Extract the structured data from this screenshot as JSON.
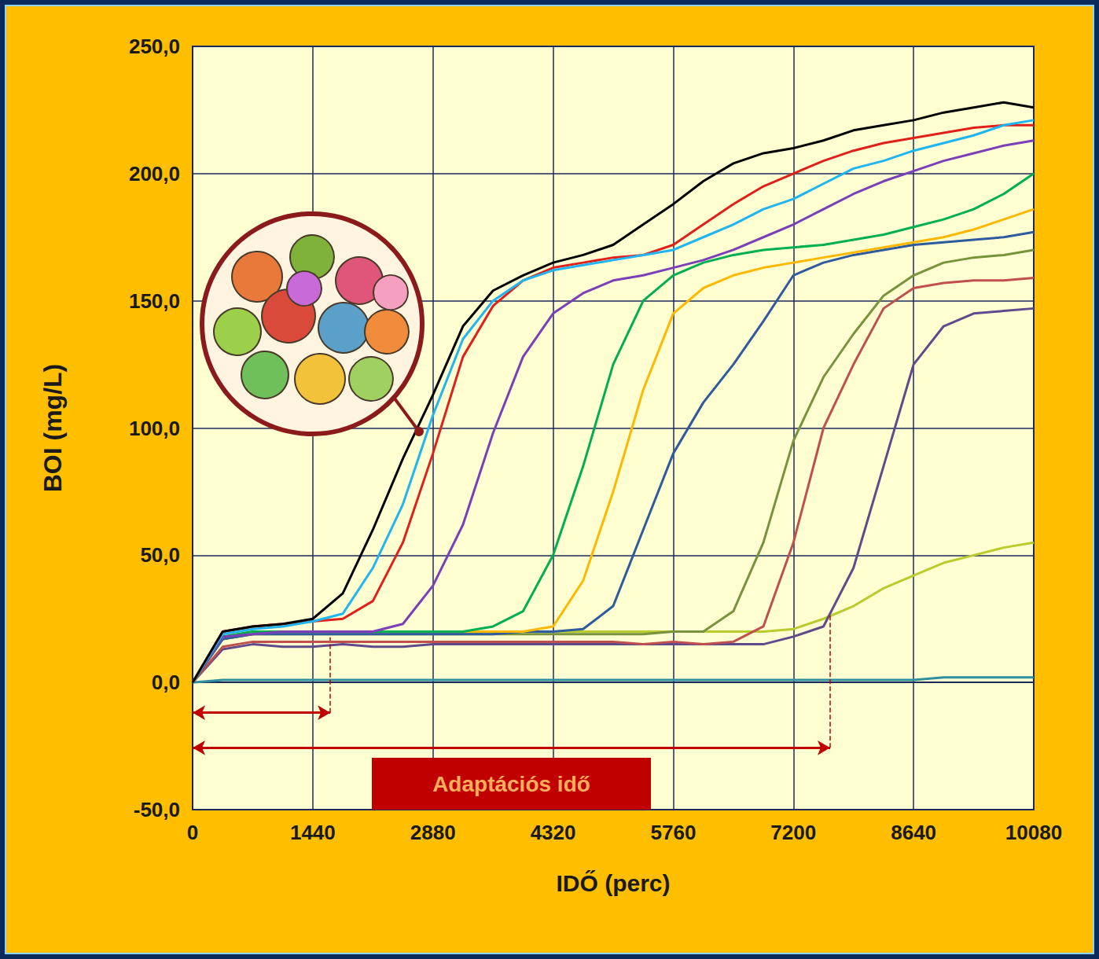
{
  "chart_data": {
    "type": "line",
    "x_label": "IDŐ (perc)",
    "y_label": "BOI (mg/L)",
    "annotations": [
      {
        "text": "Adaptációs idő"
      }
    ],
    "adaptation": [
      {
        "time": 1650,
        "boi": 20
      },
      {
        "time": 7640,
        "boi": 27
      }
    ],
    "x": [
      0,
      360,
      720,
      1080,
      1440,
      1800,
      2160,
      2520,
      2880,
      3240,
      3600,
      3960,
      4320,
      4680,
      5040,
      5400,
      5760,
      6120,
      6480,
      6840,
      7200,
      7560,
      7920,
      8280,
      8640,
      9000,
      9360,
      9720,
      10080
    ],
    "series": [
      {
        "color": "#2e8f9f",
        "values": [
          0,
          1,
          1,
          1,
          1,
          1,
          1,
          1,
          1,
          1,
          1,
          1,
          1,
          1,
          1,
          1,
          1,
          1,
          1,
          1,
          1,
          1,
          1,
          1,
          1,
          2,
          2,
          2,
          2
        ]
      },
      {
        "color": "#b9cc2e",
        "values": [
          0,
          17,
          19,
          20,
          20,
          20,
          20,
          20,
          20,
          20,
          20,
          20,
          20,
          20,
          20,
          20,
          20,
          20,
          20,
          20,
          21,
          25,
          30,
          37,
          42,
          47,
          50,
          53,
          55
        ]
      },
      {
        "color": "#5f4b8b",
        "values": [
          0,
          13,
          15,
          14,
          14,
          15,
          14,
          14,
          15,
          15,
          15,
          15,
          15,
          15,
          15,
          15,
          15,
          15,
          15,
          15,
          18,
          22,
          45,
          85,
          125,
          140,
          145,
          146,
          147
        ]
      },
      {
        "color": "#c0504d",
        "values": [
          0,
          14,
          16,
          16,
          16,
          16,
          16,
          16,
          16,
          16,
          16,
          16,
          16,
          16,
          16,
          15,
          16,
          15,
          16,
          22,
          55,
          100,
          125,
          147,
          155,
          157,
          158,
          158,
          159
        ]
      },
      {
        "color": "#77933c",
        "values": [
          0,
          17,
          19,
          19,
          19,
          19,
          19,
          19,
          19,
          19,
          19,
          19,
          19,
          19,
          19,
          19,
          20,
          20,
          28,
          55,
          95,
          120,
          137,
          152,
          160,
          165,
          167,
          168,
          170
        ]
      },
      {
        "color": "#2e5b9e",
        "values": [
          0,
          17,
          19,
          19,
          19,
          19,
          19,
          19,
          19,
          19,
          19,
          20,
          20,
          21,
          30,
          60,
          90,
          110,
          125,
          142,
          160,
          165,
          168,
          170,
          172,
          173,
          174,
          175,
          177
        ]
      },
      {
        "color": "#ffb800",
        "values": [
          0,
          18,
          20,
          20,
          20,
          20,
          20,
          20,
          20,
          20,
          20,
          20,
          22,
          40,
          75,
          115,
          145,
          155,
          160,
          163,
          165,
          167,
          169,
          171,
          173,
          175,
          178,
          182,
          186
        ]
      },
      {
        "color": "#00b050",
        "values": [
          0,
          18,
          20,
          20,
          20,
          20,
          20,
          20,
          20,
          20,
          22,
          28,
          50,
          85,
          125,
          150,
          160,
          165,
          168,
          170,
          171,
          172,
          174,
          176,
          179,
          182,
          186,
          192,
          200
        ]
      },
      {
        "color": "#7b3fb8",
        "values": [
          0,
          18,
          19,
          20,
          20,
          20,
          20,
          23,
          38,
          62,
          98,
          128,
          145,
          153,
          158,
          160,
          163,
          166,
          170,
          175,
          180,
          186,
          192,
          197,
          201,
          205,
          208,
          211,
          213
        ]
      },
      {
        "color": "#e0201b",
        "values": [
          0,
          20,
          22,
          23,
          24,
          25,
          32,
          55,
          90,
          128,
          148,
          158,
          163,
          165,
          167,
          168,
          172,
          180,
          188,
          195,
          200,
          205,
          209,
          212,
          214,
          216,
          218,
          219,
          219
        ]
      },
      {
        "color": "#1fb5f0",
        "values": [
          0,
          19,
          21,
          22,
          24,
          27,
          45,
          70,
          105,
          135,
          150,
          158,
          162,
          164,
          166,
          168,
          170,
          175,
          180,
          186,
          190,
          196,
          202,
          205,
          209,
          212,
          215,
          219,
          221
        ]
      },
      {
        "color": "#000000",
        "values": [
          0,
          20,
          22,
          23,
          25,
          35,
          60,
          88,
          113,
          140,
          154,
          160,
          165,
          168,
          172,
          180,
          188,
          197,
          204,
          208,
          210,
          213,
          217,
          219,
          221,
          224,
          226,
          228,
          226
        ]
      }
    ],
    "xlim": [
      0,
      10080
    ],
    "xticks": [
      0,
      1440,
      2880,
      4320,
      5760,
      7200,
      8640,
      10080
    ],
    "ylim": [
      -50,
      250
    ],
    "yticks": [
      {
        "value": -50,
        "label": "-50,0"
      },
      {
        "value": 0,
        "label": "0,0"
      },
      {
        "value": 50,
        "label": "50,0"
      },
      {
        "value": 100,
        "label": "100,0"
      },
      {
        "value": 150,
        "label": "150,0"
      },
      {
        "value": 200,
        "label": "200,0"
      },
      {
        "value": 250,
        "label": "250,0"
      }
    ],
    "grid": true,
    "marker": "none"
  }
}
